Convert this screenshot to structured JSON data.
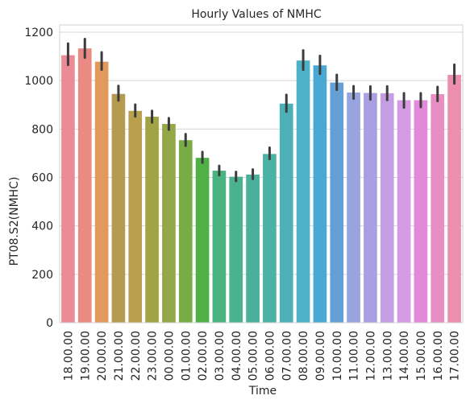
{
  "chart_data": {
    "type": "bar",
    "title": "Hourly Values of NMHC",
    "xlabel": "Time",
    "ylabel": "PT08.S2(NMHC)",
    "ylim": [
      0,
      1230
    ],
    "yticks": [
      0,
      200,
      400,
      600,
      800,
      1000,
      1200
    ],
    "grid": true,
    "categories": [
      "18.00.00",
      "19.00.00",
      "20.00.00",
      "21.00.00",
      "22.00.00",
      "23.00.00",
      "00.00.00",
      "01.00.00",
      "02.00.00",
      "03.00.00",
      "04.00.00",
      "05.00.00",
      "06.00.00",
      "07.00.00",
      "08.00.00",
      "09.00.00",
      "10.00.00",
      "11.00.00",
      "12.00.00",
      "13.00.00",
      "14.00.00",
      "15.00.00",
      "16.00.00",
      "17.00.00"
    ],
    "values": [
      1105,
      1133,
      1078,
      945,
      875,
      851,
      821,
      754,
      681,
      628,
      603,
      612,
      697,
      905,
      1083,
      1063,
      992,
      951,
      949,
      948,
      919,
      919,
      944,
      1024
    ],
    "ci_low": [
      1065,
      1095,
      1045,
      918,
      852,
      827,
      797,
      731,
      661,
      609,
      585,
      594,
      676,
      872,
      1045,
      1028,
      962,
      926,
      922,
      920,
      889,
      891,
      916,
      988
    ],
    "ci_high": [
      1153,
      1172,
      1117,
      978,
      901,
      875,
      845,
      779,
      705,
      648,
      623,
      633,
      723,
      941,
      1125,
      1102,
      1024,
      977,
      976,
      976,
      948,
      948,
      974,
      1066
    ],
    "colors": [
      "#ec8b98",
      "#ea8a82",
      "#e2995c",
      "#b59b4f",
      "#b9a04c",
      "#a1a445",
      "#93a746",
      "#7aac45",
      "#4fb046",
      "#49b47f",
      "#4ab28e",
      "#49b19b",
      "#4ab3a6",
      "#4bb1b6",
      "#4eb2c6",
      "#49a9d2",
      "#64a0d6",
      "#98a4e0",
      "#a9a0e3",
      "#c59de2",
      "#d49be4",
      "#e28ad9",
      "#e98ec4",
      "#ec8ead"
    ]
  }
}
